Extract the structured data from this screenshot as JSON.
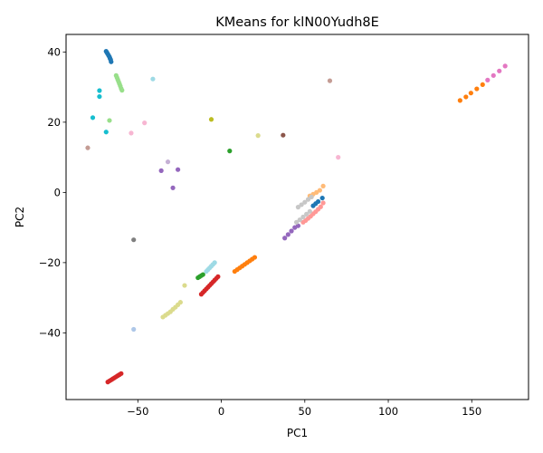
{
  "chart_data": {
    "type": "scatter",
    "title": "KMeans for klN00Yudh8E",
    "xlabel": "PC1",
    "ylabel": "PC2",
    "xlim": [
      -93,
      184
    ],
    "ylim": [
      -59,
      45
    ],
    "xticks": [
      -50,
      0,
      50,
      100,
      150
    ],
    "yticks": [
      -40,
      -20,
      0,
      20,
      40
    ],
    "grid": false,
    "legend": "none",
    "series": [
      {
        "color": "#1f77b4",
        "points": [
          [
            -69,
            40.2
          ],
          [
            -68.5,
            39.8
          ],
          [
            -68,
            39.4
          ],
          [
            -67.5,
            39.0
          ],
          [
            -67,
            38.6
          ],
          [
            -66.7,
            38.2
          ],
          [
            -66.3,
            37.8
          ],
          [
            -66,
            37.2
          ],
          [
            55,
            -3.8
          ],
          [
            56.5,
            -3.2
          ],
          [
            58,
            -2.6
          ],
          [
            60.5,
            -1.6
          ]
        ]
      },
      {
        "color": "#aec7e8",
        "points": [
          [
            -52.5,
            -39
          ]
        ]
      },
      {
        "color": "#ff7f0e",
        "points": [
          [
            8,
            -22.5
          ],
          [
            9.5,
            -22
          ],
          [
            11,
            -21.5
          ],
          [
            12.5,
            -21
          ],
          [
            14,
            -20.5
          ],
          [
            15.5,
            -20
          ],
          [
            17,
            -19.5
          ],
          [
            18.5,
            -19
          ],
          [
            20,
            -18.5
          ],
          [
            143,
            26.2
          ],
          [
            146.5,
            27.2
          ],
          [
            149.5,
            28.3
          ],
          [
            153,
            29.5
          ],
          [
            156.5,
            30.7
          ]
        ]
      },
      {
        "color": "#ffbb78",
        "points": [
          [
            53,
            -1
          ],
          [
            55,
            -0.5
          ],
          [
            57,
            0
          ],
          [
            59,
            0.6
          ],
          [
            61,
            1.8
          ]
        ]
      },
      {
        "color": "#2ca02c",
        "points": [
          [
            -14,
            -24.3
          ],
          [
            -13,
            -24
          ],
          [
            -12,
            -23.7
          ],
          [
            -11,
            -23.4
          ],
          [
            5,
            11.8
          ]
        ]
      },
      {
        "color": "#98df8a",
        "points": [
          [
            -63,
            33.3
          ],
          [
            -62.5,
            32.7
          ],
          [
            -62,
            32.1
          ],
          [
            -61.5,
            31.5
          ],
          [
            -61,
            30.9
          ],
          [
            -60.5,
            30.3
          ],
          [
            -60,
            29.6
          ],
          [
            -59.5,
            29.1
          ],
          [
            -67,
            20.5
          ]
        ]
      },
      {
        "color": "#d62728",
        "points": [
          [
            -68,
            -54
          ],
          [
            -67,
            -53.7
          ],
          [
            -66,
            -53.4
          ],
          [
            -65,
            -53.1
          ],
          [
            -64,
            -52.8
          ],
          [
            -63,
            -52.5
          ],
          [
            -62,
            -52.2
          ],
          [
            -61,
            -51.9
          ],
          [
            -60,
            -51.6
          ],
          [
            -12,
            -29
          ],
          [
            -11,
            -28.5
          ],
          [
            -10,
            -28
          ],
          [
            -9,
            -27.5
          ],
          [
            -8,
            -27
          ],
          [
            -7,
            -26.5
          ],
          [
            -6,
            -26
          ],
          [
            -5,
            -25.5
          ],
          [
            -4,
            -25
          ],
          [
            -3,
            -24.5
          ],
          [
            -2,
            -24
          ]
        ]
      },
      {
        "color": "#ff9896",
        "points": [
          [
            49,
            -8.5
          ],
          [
            50.5,
            -8
          ],
          [
            52,
            -7.4
          ],
          [
            53.5,
            -6.8
          ],
          [
            55,
            -6.1
          ],
          [
            56.5,
            -5.5
          ],
          [
            58,
            -4.8
          ],
          [
            59.5,
            -4.1
          ],
          [
            61,
            -3
          ]
        ]
      },
      {
        "color": "#9467bd",
        "points": [
          [
            -36,
            6.2
          ],
          [
            -29,
            1.3
          ],
          [
            -26,
            6.5
          ],
          [
            38,
            -13
          ],
          [
            40,
            -12
          ],
          [
            42,
            -11
          ],
          [
            44,
            -10
          ],
          [
            46,
            -9.5
          ]
        ]
      },
      {
        "color": "#c5b0d5",
        "points": [
          [
            -32,
            8.7
          ]
        ]
      },
      {
        "color": "#8c564b",
        "points": [
          [
            37,
            16.3
          ]
        ]
      },
      {
        "color": "#c49c94",
        "points": [
          [
            -80,
            12.7
          ],
          [
            65,
            31.8
          ]
        ]
      },
      {
        "color": "#e377c2",
        "points": [
          [
            159.5,
            32
          ],
          [
            163,
            33.3
          ],
          [
            166.5,
            34.6
          ],
          [
            170,
            36
          ]
        ]
      },
      {
        "color": "#f7b6d2",
        "points": [
          [
            -46,
            19.8
          ],
          [
            -54,
            16.9
          ],
          [
            70,
            10
          ]
        ]
      },
      {
        "color": "#7f7f7f",
        "points": [
          [
            -52.5,
            -13.5
          ]
        ]
      },
      {
        "color": "#c7c7c7",
        "points": [
          [
            46,
            -4.2
          ],
          [
            48,
            -3.5
          ],
          [
            50,
            -2.8
          ],
          [
            52,
            -2
          ],
          [
            54,
            -1.3
          ],
          [
            45,
            -8.5
          ],
          [
            47,
            -7.8
          ],
          [
            49,
            -7
          ],
          [
            51,
            -6.2
          ],
          [
            53,
            -5.4
          ]
        ]
      },
      {
        "color": "#bcbd22",
        "points": [
          [
            -6,
            20.8
          ]
        ]
      },
      {
        "color": "#dbdb8d",
        "points": [
          [
            -35,
            -35.5
          ],
          [
            -33.5,
            -35
          ],
          [
            -32,
            -34.5
          ],
          [
            -30.5,
            -34
          ],
          [
            -29,
            -33.3
          ],
          [
            -27.5,
            -32.7
          ],
          [
            -26,
            -32
          ],
          [
            -24.5,
            -31.3
          ],
          [
            -22,
            -26.5
          ],
          [
            22,
            16.2
          ]
        ]
      },
      {
        "color": "#17becf",
        "points": [
          [
            -73,
            29
          ],
          [
            -73,
            27.3
          ],
          [
            -77,
            21.3
          ],
          [
            -69,
            17.2
          ]
        ]
      },
      {
        "color": "#9edae5",
        "points": [
          [
            -9,
            -22.5
          ],
          [
            -8,
            -22
          ],
          [
            -7,
            -21.5
          ],
          [
            -6,
            -21
          ],
          [
            -5,
            -20.5
          ],
          [
            -4,
            -20
          ],
          [
            -41,
            32.3
          ]
        ]
      }
    ]
  }
}
